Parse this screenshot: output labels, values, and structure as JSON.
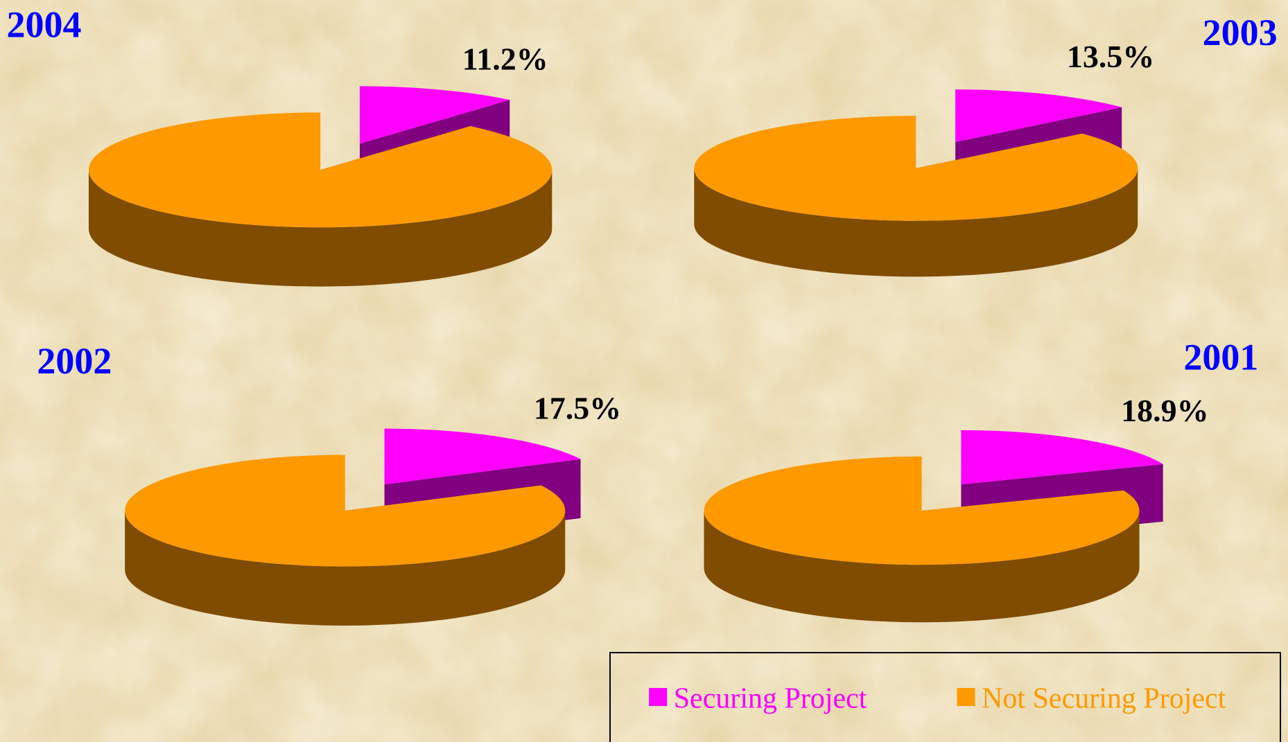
{
  "chart_data": [
    {
      "type": "pie",
      "title": "2004",
      "categories": [
        "Securing Project",
        "Not Securing Project"
      ],
      "values": [
        11.2,
        88.8
      ],
      "value_labels": [
        "11.2%",
        null
      ],
      "colors": [
        "#ff00ff",
        "#ff9900"
      ]
    },
    {
      "type": "pie",
      "title": "2003",
      "categories": [
        "Securing Project",
        "Not Securing Project"
      ],
      "values": [
        13.5,
        86.5
      ],
      "value_labels": [
        "13.5%",
        null
      ],
      "colors": [
        "#ff00ff",
        "#ff9900"
      ]
    },
    {
      "type": "pie",
      "title": "2002",
      "categories": [
        "Securing Project",
        "Not Securing Project"
      ],
      "values": [
        17.5,
        82.5
      ],
      "value_labels": [
        "17.5%",
        null
      ],
      "colors": [
        "#ff00ff",
        "#ff9900"
      ]
    },
    {
      "type": "pie",
      "title": "2001",
      "categories": [
        "Securing Project",
        "Not Securing Project"
      ],
      "values": [
        18.9,
        81.1
      ],
      "value_labels": [
        "18.9%",
        null
      ],
      "colors": [
        "#ff00ff",
        "#ff9900"
      ]
    }
  ]
}
